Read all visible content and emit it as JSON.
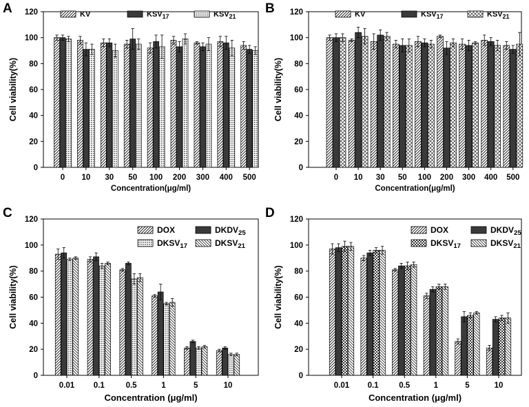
{
  "colors": {
    "ink": "#000000",
    "dark_bar": "#3a3a3a",
    "paper": "#ffffff"
  },
  "chart_data": [
    {
      "panel": "A",
      "type": "bar",
      "categories": [
        "0",
        "10",
        "30",
        "50",
        "100",
        "200",
        "300",
        "400",
        "500"
      ],
      "xlabel": "Concentration(μg/ml)",
      "ylabel": "Cell viability(%)",
      "ylim": [
        0,
        120
      ],
      "yticks": [
        0,
        20,
        40,
        60,
        80,
        100,
        120
      ],
      "legend_cols": 3,
      "series": [
        {
          "name": "KV",
          "sub": "",
          "pattern": "diag",
          "values": [
            100,
            98,
            96,
            95,
            92,
            98,
            96,
            97,
            94
          ],
          "errors": [
            2,
            3,
            3,
            3,
            4,
            3,
            1,
            4,
            3
          ]
        },
        {
          "name": "KSV",
          "sub": "17",
          "pattern": "dark",
          "values": [
            100,
            91,
            96,
            99,
            97,
            93,
            93,
            96,
            91
          ],
          "errors": [
            2,
            5,
            3,
            8,
            5,
            4,
            3,
            5,
            3
          ]
        },
        {
          "name": "KSV",
          "sub": "21",
          "pattern": "dots",
          "values": [
            99,
            91,
            90,
            95,
            93,
            99,
            95,
            92,
            90
          ],
          "errors": [
            2,
            4,
            5,
            4,
            9,
            4,
            5,
            6,
            3
          ]
        }
      ]
    },
    {
      "panel": "B",
      "type": "bar",
      "categories": [
        "0",
        "10",
        "30",
        "50",
        "100",
        "200",
        "300",
        "400",
        "500"
      ],
      "xlabel": "Concentration(μg/ml)",
      "ylabel": "Cell viability(%)",
      "ylim": [
        0,
        120
      ],
      "yticks": [
        0,
        20,
        40,
        60,
        80,
        100,
        120
      ],
      "legend_cols": 3,
      "series": [
        {
          "name": "KV",
          "sub": "",
          "pattern": "diag",
          "values": [
            100,
            98,
            97,
            95,
            97,
            101,
            95,
            98,
            94
          ],
          "errors": [
            2,
            1,
            6,
            3,
            4,
            1,
            4,
            4,
            3
          ]
        },
        {
          "name": "KSV",
          "sub": "17",
          "pattern": "dark",
          "values": [
            100,
            104,
            102,
            94,
            96,
            92,
            94,
            97,
            91
          ],
          "errors": [
            3,
            4,
            4,
            5,
            3,
            5,
            4,
            3,
            3
          ]
        },
        {
          "name": "KSV",
          "sub": "21",
          "pattern": "cross",
          "values": [
            100,
            101,
            101,
            94,
            95,
            96,
            96,
            94,
            95
          ],
          "errors": [
            3,
            6,
            3,
            5,
            3,
            3,
            1,
            4,
            9
          ]
        }
      ]
    },
    {
      "panel": "C",
      "type": "bar",
      "categories": [
        "0.01",
        "0.1",
        "0.5",
        "1",
        "5",
        "10"
      ],
      "xlabel": "Concentration (μg/ml)",
      "ylabel": "Cell viability(%)",
      "ylim": [
        0,
        120
      ],
      "yticks": [
        0,
        20,
        40,
        60,
        80,
        100,
        120
      ],
      "legend_cols": 2,
      "series": [
        {
          "name": "DOX",
          "sub": "",
          "pattern": "diag",
          "values": [
            93,
            89,
            81,
            61,
            21,
            19
          ],
          "errors": [
            4,
            2,
            1,
            1,
            1,
            1
          ]
        },
        {
          "name": "DKDV",
          "sub": "25",
          "pattern": "dark",
          "values": [
            94,
            91,
            86,
            64,
            26,
            21
          ],
          "errors": [
            4,
            3,
            1,
            6,
            1,
            1
          ]
        },
        {
          "name": "DKSV",
          "sub": "17",
          "pattern": "dots",
          "values": [
            89,
            84,
            74,
            55,
            21,
            16
          ],
          "errors": [
            1,
            2,
            4,
            1,
            1,
            1
          ]
        },
        {
          "name": "DKSV",
          "sub": "21",
          "pattern": "diag2",
          "values": [
            90,
            86,
            75,
            56,
            22,
            16
          ],
          "errors": [
            1,
            1,
            3,
            3,
            1,
            1
          ]
        }
      ]
    },
    {
      "panel": "D",
      "type": "bar",
      "categories": [
        "0.01",
        "0.1",
        "0.5",
        "1",
        "5",
        "10"
      ],
      "xlabel": "Concentration (μg/ml)",
      "ylabel": "Cell viability(%)",
      "ylim": [
        0,
        120
      ],
      "yticks": [
        0,
        20,
        40,
        60,
        80,
        100,
        120
      ],
      "legend_cols": 2,
      "series": [
        {
          "name": "DOX",
          "sub": "",
          "pattern": "diag",
          "values": [
            97,
            90,
            81,
            61,
            26,
            21
          ],
          "errors": [
            4,
            2,
            1,
            2,
            2,
            2
          ]
        },
        {
          "name": "DKDV",
          "sub": "25",
          "pattern": "dark",
          "values": [
            98,
            94,
            84,
            66,
            45,
            43
          ],
          "errors": [
            3,
            2,
            2,
            2,
            4,
            2
          ]
        },
        {
          "name": "DKSV",
          "sub": "17",
          "pattern": "check",
          "values": [
            99,
            96,
            84,
            68,
            46,
            44
          ],
          "errors": [
            4,
            2,
            3,
            2,
            2,
            2
          ]
        },
        {
          "name": "DKSV",
          "sub": "21",
          "pattern": "diag2",
          "values": [
            99,
            96,
            85,
            68,
            48,
            44
          ],
          "errors": [
            3,
            3,
            2,
            2,
            1,
            4
          ]
        }
      ]
    }
  ]
}
